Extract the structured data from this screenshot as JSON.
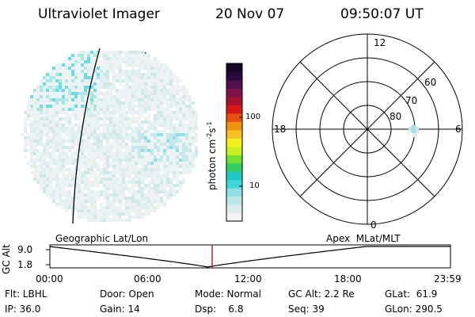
{
  "header": {
    "title": "Ultraviolet Imager",
    "date": "20 Nov 07",
    "time": "09:50:07 UT"
  },
  "colorbar": {
    "label_parts": [
      "photon cm",
      "-2",
      "s",
      "-1"
    ],
    "ticks": [
      "100",
      "10"
    ],
    "colors": [
      "#f2f2f2",
      "#dcecec",
      "#bfe6e6",
      "#8fe0e0",
      "#3fd8d8",
      "#20c8c8",
      "#30d060",
      "#70e030",
      "#c8f020",
      "#f0f020",
      "#f8c020",
      "#f09010",
      "#e85010",
      "#d81818",
      "#a81030",
      "#80104a",
      "#501050",
      "#2a0a40",
      "#180828"
    ]
  },
  "polar": {
    "lat_labels": [
      "60",
      "70",
      "80"
    ],
    "mlt_labels": {
      "top": "12",
      "left": "18",
      "right": "6",
      "bottom": "0"
    }
  },
  "orbit": {
    "left_label": "Geographic Lat/Lon",
    "right_label": "Apex  MLat/MLT",
    "y_axis_title": "GC Alt",
    "y_ticks": [
      "9.0",
      "1.8"
    ],
    "x_ticks": [
      "00:00",
      "06:00",
      "12:00",
      "18:00",
      "23:59"
    ]
  },
  "status": {
    "flt": "Flt: LBHL",
    "ip": "IP: 36.0",
    "door": "Door: Open",
    "gain": "Gain: 14",
    "mode": "Mode: Normal",
    "dsp": "Dsp:    6.8",
    "gc_alt": "GC Alt: 2.2 Re",
    "seq": "Seq: 39",
    "glat": "GLat:  61.9",
    "glon": "GLon: 290.5"
  }
}
